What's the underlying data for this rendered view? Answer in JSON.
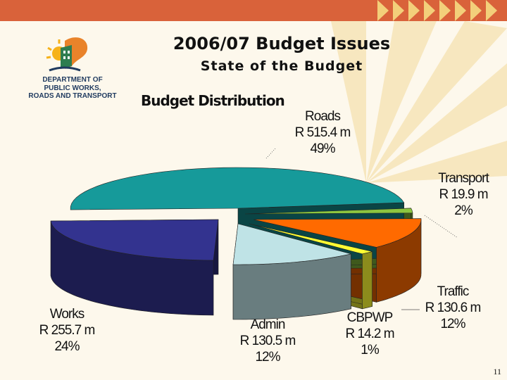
{
  "header": {
    "title": "2006/07 Budget Issues",
    "subtitle": "State of the Budget"
  },
  "logo": {
    "lines": [
      "DEPARTMENT OF",
      "PUBLIC WORKS,",
      "ROADS AND TRANSPORT"
    ]
  },
  "chart_data": {
    "type": "pie",
    "title": "Budget Distribution",
    "three_d": true,
    "slices": [
      {
        "name": "Roads",
        "amount": "R 515.4 m",
        "value": 515.4,
        "percent": "49%",
        "color": "#169a9a"
      },
      {
        "name": "Transport",
        "amount": "R 19.9 m",
        "value": 19.9,
        "percent": "2%",
        "color": "#8cc63f"
      },
      {
        "name": "Traffic",
        "amount": "R 130.6 m",
        "value": 130.6,
        "percent": "12%",
        "color": "#ff6a00"
      },
      {
        "name": "CBPWP",
        "amount": "R 14.2 m",
        "value": 14.2,
        "percent": "1%",
        "color": "#ffff33"
      },
      {
        "name": "Admin",
        "amount": "R 130.5 m",
        "value": 130.5,
        "percent": "12%",
        "color": "#bfe3e6"
      },
      {
        "name": "Works",
        "amount": "R 255.7 m",
        "value": 255.7,
        "percent": "24%",
        "color": "#33338f"
      }
    ]
  },
  "footer": {
    "page_number": "11"
  }
}
